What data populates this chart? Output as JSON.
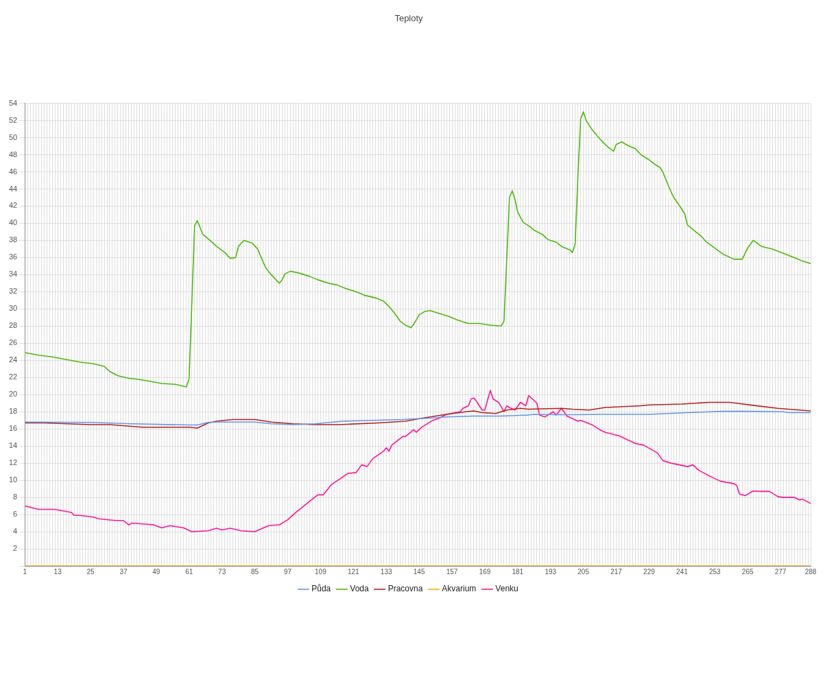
{
  "chart_data": {
    "type": "line",
    "title": "Teploty",
    "xlim": [
      1,
      288
    ],
    "ylim": [
      0,
      54
    ],
    "xticks": [
      1,
      {
        "value": 2,
        "label": null
      },
      {
        "value": 3,
        "label": null
      },
      {
        "value": 4,
        "label": null
      },
      {
        "value": 5,
        "label": null
      },
      {
        "value": 6,
        "label": null
      },
      {
        "value": 7,
        "label": null
      },
      {
        "value": 8,
        "label": null
      },
      {
        "value": 9,
        "label": null
      },
      {
        "value": 10,
        "label": null
      },
      {
        "value": 11,
        "label": null
      },
      {
        "value": 12,
        "label": null
      },
      13,
      {
        "value": 14,
        "label": null
      },
      {
        "value": 15,
        "label": null
      },
      {
        "value": 16,
        "label": null
      },
      {
        "value": 17,
        "label": null
      },
      {
        "value": 18,
        "label": null
      },
      {
        "value": 19,
        "label": null
      },
      {
        "value": 20,
        "label": null
      },
      {
        "value": 21,
        "label": null
      },
      {
        "value": 22,
        "label": null
      },
      {
        "value": 23,
        "label": null
      },
      {
        "value": 24,
        "label": null
      },
      25,
      {
        "value": 26,
        "label": null
      },
      {
        "value": 27,
        "label": null
      },
      {
        "value": 28,
        "label": null
      },
      {
        "value": 29,
        "label": null
      },
      {
        "value": 30,
        "label": null
      },
      {
        "value": 31,
        "label": null
      },
      {
        "value": 32,
        "label": null
      },
      {
        "value": 33,
        "label": null
      },
      {
        "value": 34,
        "label": null
      },
      {
        "value": 35,
        "label": null
      },
      {
        "value": 36,
        "label": null
      },
      37,
      {
        "value": 38,
        "label": null
      },
      {
        "value": 39,
        "label": null
      },
      {
        "value": 40,
        "label": null
      },
      {
        "value": 41,
        "label": null
      },
      {
        "value": 42,
        "label": null
      },
      {
        "value": 43,
        "label": null
      },
      {
        "value": 44,
        "label": null
      },
      {
        "value": 45,
        "label": null
      },
      {
        "value": 46,
        "label": null
      },
      {
        "value": 47,
        "label": null
      },
      {
        "value": 48,
        "label": null
      },
      49,
      {
        "value": 50,
        "label": null
      },
      {
        "value": 51,
        "label": null
      },
      {
        "value": 52,
        "label": null
      },
      {
        "value": 53,
        "label": null
      },
      {
        "value": 54,
        "label": null
      },
      {
        "value": 55,
        "label": null
      },
      {
        "value": 56,
        "label": null
      },
      {
        "value": 57,
        "label": null
      },
      {
        "value": 58,
        "label": null
      },
      {
        "value": 59,
        "label": null
      },
      {
        "value": 60,
        "label": null
      },
      61,
      {
        "value": 62,
        "label": null
      },
      {
        "value": 63,
        "label": null
      },
      {
        "value": 64,
        "label": null
      },
      {
        "value": 65,
        "label": null
      },
      {
        "value": 66,
        "label": null
      },
      {
        "value": 67,
        "label": null
      },
      {
        "value": 68,
        "label": null
      },
      {
        "value": 69,
        "label": null
      },
      {
        "value": 70,
        "label": null
      },
      {
        "value": 71,
        "label": null
      },
      {
        "value": 72,
        "label": null
      },
      73,
      {
        "value": 74,
        "label": null
      },
      {
        "value": 75,
        "label": null
      },
      {
        "value": 76,
        "label": null
      },
      {
        "value": 77,
        "label": null
      },
      {
        "value": 78,
        "label": null
      },
      {
        "value": 79,
        "label": null
      },
      {
        "value": 80,
        "label": null
      },
      {
        "value": 81,
        "label": null
      },
      {
        "value": 82,
        "label": null
      },
      {
        "value": 83,
        "label": null
      },
      {
        "value": 84,
        "label": null
      },
      85,
      {
        "value": 86,
        "label": null
      },
      {
        "value": 87,
        "label": null
      },
      {
        "value": 88,
        "label": null
      },
      {
        "value": 89,
        "label": null
      },
      {
        "value": 90,
        "label": null
      },
      {
        "value": 91,
        "label": null
      },
      {
        "value": 92,
        "label": null
      },
      {
        "value": 93,
        "label": null
      },
      {
        "value": 94,
        "label": null
      },
      {
        "value": 95,
        "label": null
      },
      {
        "value": 96,
        "label": null
      },
      97,
      {
        "value": 98,
        "label": null
      },
      {
        "value": 99,
        "label": null
      },
      {
        "value": 100,
        "label": null
      },
      {
        "value": 101,
        "label": null
      },
      {
        "value": 102,
        "label": null
      },
      {
        "value": 103,
        "label": null
      },
      {
        "value": 104,
        "label": null
      },
      {
        "value": 105,
        "label": null
      },
      {
        "value": 106,
        "label": null
      },
      {
        "value": 107,
        "label": null
      },
      {
        "value": 108,
        "label": null
      },
      109,
      {
        "value": 110,
        "label": null
      },
      {
        "value": 111,
        "label": null
      },
      {
        "value": 112,
        "label": null
      },
      {
        "value": 113,
        "label": null
      },
      {
        "value": 114,
        "label": null
      },
      {
        "value": 115,
        "label": null
      },
      {
        "value": 116,
        "label": null
      },
      {
        "value": 117,
        "label": null
      },
      {
        "value": 118,
        "label": null
      },
      {
        "value": 119,
        "label": null
      },
      {
        "value": 120,
        "label": null
      },
      121,
      {
        "value": 122,
        "label": null
      },
      {
        "value": 123,
        "label": null
      },
      {
        "value": 124,
        "label": null
      },
      {
        "value": 125,
        "label": null
      },
      {
        "value": 126,
        "label": null
      },
      {
        "value": 127,
        "label": null
      },
      {
        "value": 128,
        "label": null
      },
      {
        "value": 129,
        "label": null
      },
      {
        "value": 130,
        "label": null
      },
      {
        "value": 131,
        "label": null
      },
      {
        "value": 132,
        "label": null
      },
      133,
      {
        "value": 134,
        "label": null
      },
      {
        "value": 135,
        "label": null
      },
      {
        "value": 136,
        "label": null
      },
      {
        "value": 137,
        "label": null
      },
      {
        "value": 138,
        "label": null
      },
      {
        "value": 139,
        "label": null
      },
      {
        "value": 140,
        "label": null
      },
      {
        "value": 141,
        "label": null
      },
      {
        "value": 142,
        "label": null
      },
      {
        "value": 143,
        "label": null
      },
      {
        "value": 144,
        "label": null
      },
      145,
      {
        "value": 146,
        "label": null
      },
      {
        "value": 147,
        "label": null
      },
      {
        "value": 148,
        "label": null
      },
      {
        "value": 149,
        "label": null
      },
      {
        "value": 150,
        "label": null
      },
      {
        "value": 151,
        "label": null
      },
      {
        "value": 152,
        "label": null
      },
      {
        "value": 153,
        "label": null
      },
      {
        "value": 154,
        "label": null
      },
      {
        "value": 155,
        "label": null
      },
      {
        "value": 156,
        "label": null
      },
      157,
      {
        "value": 158,
        "label": null
      },
      {
        "value": 159,
        "label": null
      },
      {
        "value": 160,
        "label": null
      },
      {
        "value": 161,
        "label": null
      },
      {
        "value": 162,
        "label": null
      },
      {
        "value": 163,
        "label": null
      },
      {
        "value": 164,
        "label": null
      },
      {
        "value": 165,
        "label": null
      },
      {
        "value": 166,
        "label": null
      },
      {
        "value": 167,
        "label": null
      },
      {
        "value": 168,
        "label": null
      },
      169,
      {
        "value": 170,
        "label": null
      },
      {
        "value": 171,
        "label": null
      },
      {
        "value": 172,
        "label": null
      },
      {
        "value": 173,
        "label": null
      },
      {
        "value": 174,
        "label": null
      },
      {
        "value": 175,
        "label": null
      },
      {
        "value": 176,
        "label": null
      },
      {
        "value": 177,
        "label": null
      },
      {
        "value": 178,
        "label": null
      },
      {
        "value": 179,
        "label": null
      },
      {
        "value": 180,
        "label": null
      },
      181,
      {
        "value": 182,
        "label": null
      },
      {
        "value": 183,
        "label": null
      },
      {
        "value": 184,
        "label": null
      },
      {
        "value": 185,
        "label": null
      },
      {
        "value": 186,
        "label": null
      },
      {
        "value": 187,
        "label": null
      },
      {
        "value": 188,
        "label": null
      },
      {
        "value": 189,
        "label": null
      },
      {
        "value": 190,
        "label": null
      },
      {
        "value": 191,
        "label": null
      },
      {
        "value": 192,
        "label": null
      },
      193,
      {
        "value": 194,
        "label": null
      },
      {
        "value": 195,
        "label": null
      },
      {
        "value": 196,
        "label": null
      },
      {
        "value": 197,
        "label": null
      },
      {
        "value": 198,
        "label": null
      },
      {
        "value": 199,
        "label": null
      },
      {
        "value": 200,
        "label": null
      },
      {
        "value": 201,
        "label": null
      },
      {
        "value": 202,
        "label": null
      },
      {
        "value": 203,
        "label": null
      },
      {
        "value": 204,
        "label": null
      },
      205,
      {
        "value": 206,
        "label": null
      },
      {
        "value": 207,
        "label": null
      },
      {
        "value": 208,
        "label": null
      },
      {
        "value": 209,
        "label": null
      },
      {
        "value": 210,
        "label": null
      },
      {
        "value": 211,
        "label": null
      },
      {
        "value": 212,
        "label": null
      },
      {
        "value": 213,
        "label": null
      },
      {
        "value": 214,
        "label": null
      },
      {
        "value": 215,
        "label": null
      },
      {
        "value": 216,
        "label": null
      },
      217,
      {
        "value": 218,
        "label": null
      },
      {
        "value": 219,
        "label": null
      },
      {
        "value": 220,
        "label": null
      },
      {
        "value": 221,
        "label": null
      },
      {
        "value": 222,
        "label": null
      },
      {
        "value": 223,
        "label": null
      },
      {
        "value": 224,
        "label": null
      },
      {
        "value": 225,
        "label": null
      },
      {
        "value": 226,
        "label": null
      },
      {
        "value": 227,
        "label": null
      },
      {
        "value": 228,
        "label": null
      },
      229,
      {
        "value": 230,
        "label": null
      },
      {
        "value": 231,
        "label": null
      },
      {
        "value": 232,
        "label": null
      },
      {
        "value": 233,
        "label": null
      },
      {
        "value": 234,
        "label": null
      },
      {
        "value": 235,
        "label": null
      },
      {
        "value": 236,
        "label": null
      },
      {
        "value": 237,
        "label": null
      },
      {
        "value": 238,
        "label": null
      },
      {
        "value": 239,
        "label": null
      },
      {
        "value": 240,
        "label": null
      },
      241,
      {
        "value": 242,
        "label": null
      },
      {
        "value": 243,
        "label": null
      },
      {
        "value": 244,
        "label": null
      },
      {
        "value": 245,
        "label": null
      },
      {
        "value": 246,
        "label": null
      },
      {
        "value": 247,
        "label": null
      },
      {
        "value": 248,
        "label": null
      },
      {
        "value": 249,
        "label": null
      },
      {
        "value": 250,
        "label": null
      },
      {
        "value": 251,
        "label": null
      },
      {
        "value": 252,
        "label": null
      },
      253,
      {
        "value": 254,
        "label": null
      },
      {
        "value": 255,
        "label": null
      },
      {
        "value": 256,
        "label": null
      },
      {
        "value": 257,
        "label": null
      },
      {
        "value": 258,
        "label": null
      },
      {
        "value": 259,
        "label": null
      },
      {
        "value": 260,
        "label": null
      },
      {
        "value": 261,
        "label": null
      },
      {
        "value": 262,
        "label": null
      },
      {
        "value": 263,
        "label": null
      },
      {
        "value": 264,
        "label": null
      },
      265,
      {
        "value": 266,
        "label": null
      },
      {
        "value": 267,
        "label": null
      },
      {
        "value": 268,
        "label": null
      },
      {
        "value": 269,
        "label": null
      },
      {
        "value": 270,
        "label": null
      },
      {
        "value": 271,
        "label": null
      },
      {
        "value": 272,
        "label": null
      },
      {
        "value": 273,
        "label": null
      },
      {
        "value": 274,
        "label": null
      },
      {
        "value": 275,
        "label": null
      },
      {
        "value": 276,
        "label": null
      },
      277,
      {
        "value": 278,
        "label": null
      },
      {
        "value": 279,
        "label": null
      },
      {
        "value": 280,
        "label": null
      },
      {
        "value": 281,
        "label": null
      },
      {
        "value": 282,
        "label": null
      },
      {
        "value": 283,
        "label": null
      },
      {
        "value": 284,
        "label": null
      },
      {
        "value": 285,
        "label": null
      },
      {
        "value": 286,
        "label": null
      },
      {
        "value": 287,
        "label": null
      },
      288
    ],
    "yticks": [
      {
        "value": 0,
        "label": null
      },
      2,
      4,
      6,
      8,
      10,
      12,
      14,
      16,
      18,
      20,
      22,
      24,
      26,
      28,
      30,
      32,
      34,
      36,
      38,
      40,
      42,
      44,
      46,
      48,
      50,
      52,
      54
    ],
    "grid": true,
    "legend": "bottom",
    "marker": "none",
    "series": [
      {
        "name": "Půda",
        "color": "#6495ed",
        "x": [
          1,
          25,
          40,
          61,
          64,
          68,
          71,
          77,
          85,
          91,
          99,
          107,
          117,
          139,
          151,
          155,
          165,
          167,
          175,
          184,
          187,
          197,
          202,
          212,
          229,
          243,
          256,
          265,
          278,
          280,
          288
        ],
        "values": [
          16.8,
          16.75,
          16.6,
          16.45,
          16.45,
          16.75,
          16.8,
          16.8,
          16.8,
          16.6,
          16.5,
          16.6,
          16.9,
          17.1,
          17.3,
          17.4,
          17.5,
          17.5,
          17.5,
          17.6,
          17.7,
          17.65,
          17.65,
          17.7,
          17.7,
          17.9,
          18.05,
          18.05,
          18.0,
          17.9,
          17.9
        ]
      },
      {
        "name": "Voda",
        "color": "#4cb80e",
        "x": [
          1,
          6,
          11,
          16,
          21,
          26,
          30,
          32,
          35,
          39,
          42,
          46,
          51,
          56,
          60,
          61,
          63,
          64,
          66,
          69,
          71,
          74,
          76,
          78,
          79,
          81,
          84,
          86,
          88,
          89,
          91,
          93,
          94,
          95,
          96,
          98,
          101,
          105,
          108,
          112,
          115,
          118,
          122,
          125,
          129,
          132,
          134,
          136,
          138,
          140,
          142,
          143,
          145,
          147,
          149,
          152,
          156,
          159,
          163,
          167,
          171,
          175,
          176,
          178,
          179,
          180,
          181,
          183,
          185,
          187,
          190,
          192,
          195,
          197,
          200,
          201,
          202,
          203,
          204,
          205,
          206,
          208,
          210,
          212,
          214,
          216,
          217,
          219,
          221,
          224,
          226,
          229,
          231,
          233,
          234,
          236,
          238,
          240,
          242,
          243,
          246,
          248,
          250,
          253,
          256,
          260,
          263,
          265,
          267,
          268,
          270,
          274,
          278,
          282,
          285,
          288
        ],
        "values": [
          24.9,
          24.6,
          24.4,
          24.1,
          23.8,
          23.6,
          23.3,
          22.7,
          22.2,
          21.9,
          21.8,
          21.6,
          21.3,
          21.2,
          20.9,
          21.9,
          39.7,
          40.3,
          38.7,
          37.9,
          37.3,
          36.6,
          35.9,
          36.0,
          37.3,
          38.0,
          37.7,
          37.0,
          35.5,
          34.8,
          34.0,
          33.3,
          33.0,
          33.4,
          34.1,
          34.4,
          34.2,
          33.8,
          33.4,
          33.0,
          32.8,
          32.4,
          32.0,
          31.6,
          31.3,
          30.9,
          30.3,
          29.5,
          28.6,
          28.1,
          27.8,
          28.2,
          29.3,
          29.7,
          29.8,
          29.5,
          29.1,
          28.7,
          28.3,
          28.3,
          28.1,
          28.0,
          28.6,
          43.0,
          43.8,
          42.8,
          41.3,
          40.1,
          39.7,
          39.2,
          38.7,
          38.1,
          37.8,
          37.3,
          36.9,
          36.6,
          37.6,
          45.5,
          52.2,
          53.0,
          52.0,
          51.0,
          50.2,
          49.5,
          48.9,
          48.4,
          49.2,
          49.5,
          49.1,
          48.7,
          48.0,
          47.4,
          46.9,
          46.5,
          46.0,
          44.4,
          43.0,
          42.1,
          41.1,
          39.8,
          39.0,
          38.5,
          37.8,
          37.1,
          36.4,
          35.8,
          35.8,
          37.1,
          38.0,
          37.8,
          37.3,
          37.0,
          36.5,
          36.0,
          35.6,
          35.3
        ]
      },
      {
        "name": "Pracovna",
        "color": "#b22222",
        "x": [
          1,
          8,
          25,
          32,
          40,
          44,
          61,
          64,
          68,
          71,
          77,
          85,
          91,
          99,
          107,
          116,
          130,
          140,
          147,
          155,
          162,
          165,
          168,
          173,
          177,
          182,
          185,
          197,
          201,
          207,
          213,
          226,
          229,
          241,
          251,
          258,
          261,
          267,
          276,
          288
        ],
        "values": [
          16.7,
          16.7,
          16.5,
          16.5,
          16.3,
          16.2,
          16.2,
          16.1,
          16.7,
          16.9,
          17.1,
          17.1,
          16.8,
          16.6,
          16.5,
          16.5,
          16.7,
          16.9,
          17.3,
          17.7,
          18.0,
          18.1,
          17.9,
          17.8,
          18.2,
          18.4,
          18.3,
          18.4,
          18.3,
          18.2,
          18.5,
          18.7,
          18.8,
          18.9,
          19.1,
          19.1,
          19.0,
          18.75,
          18.4,
          18.1
        ]
      },
      {
        "name": "Akvarium",
        "color": "#ffa500",
        "x": [
          1,
          288
        ],
        "values": [
          0,
          0
        ]
      },
      {
        "name": "Venku",
        "color": "#ff1493",
        "x": [
          1,
          6,
          12,
          18,
          19,
          21,
          26,
          28,
          34,
          37,
          39,
          40,
          48,
          51,
          54,
          59,
          62,
          68,
          71,
          73,
          76,
          80,
          85,
          90,
          94,
          97,
          100,
          106,
          108,
          110,
          113,
          119,
          122,
          124,
          126,
          128,
          132,
          133,
          134,
          135,
          139,
          140,
          143,
          144,
          146,
          150,
          152,
          155,
          160,
          161,
          163,
          164,
          165,
          166,
          168,
          169,
          171,
          172,
          174,
          176,
          177,
          178,
          180,
          182,
          184,
          185,
          188,
          189,
          191,
          194,
          195,
          197,
          199,
          203,
          204,
          208,
          211,
          213,
          218,
          224,
          227,
          232,
          234,
          237,
          243,
          245,
          247,
          251,
          255,
          260,
          261,
          262,
          264,
          267,
          270,
          273,
          276,
          278,
          282,
          284,
          285,
          288
        ],
        "values": [
          7.0,
          6.6,
          6.6,
          6.25,
          5.9,
          5.9,
          5.7,
          5.5,
          5.3,
          5.3,
          4.8,
          5.0,
          4.8,
          4.45,
          4.7,
          4.45,
          4.0,
          4.1,
          4.4,
          4.2,
          4.4,
          4.1,
          4.0,
          4.7,
          4.8,
          5.4,
          6.25,
          7.8,
          8.3,
          8.3,
          9.5,
          10.8,
          10.9,
          11.8,
          11.6,
          12.5,
          13.4,
          13.8,
          13.4,
          14.1,
          15.1,
          15.1,
          15.9,
          15.6,
          16.2,
          17.0,
          17.2,
          17.7,
          18.0,
          18.4,
          18.7,
          19.5,
          19.6,
          19.2,
          18.2,
          18.2,
          20.5,
          19.5,
          19.1,
          18.0,
          18.7,
          18.5,
          18.2,
          19.1,
          18.7,
          19.9,
          19.0,
          17.6,
          17.4,
          18.0,
          17.6,
          18.4,
          17.5,
          16.9,
          17.0,
          16.5,
          15.9,
          15.6,
          15.2,
          14.3,
          14.1,
          13.2,
          12.3,
          12.0,
          11.6,
          11.8,
          11.2,
          10.5,
          9.9,
          9.6,
          9.4,
          8.4,
          8.2,
          8.75,
          8.7,
          8.7,
          8.1,
          8.0,
          8.0,
          7.7,
          7.8,
          7.3
        ]
      }
    ]
  }
}
